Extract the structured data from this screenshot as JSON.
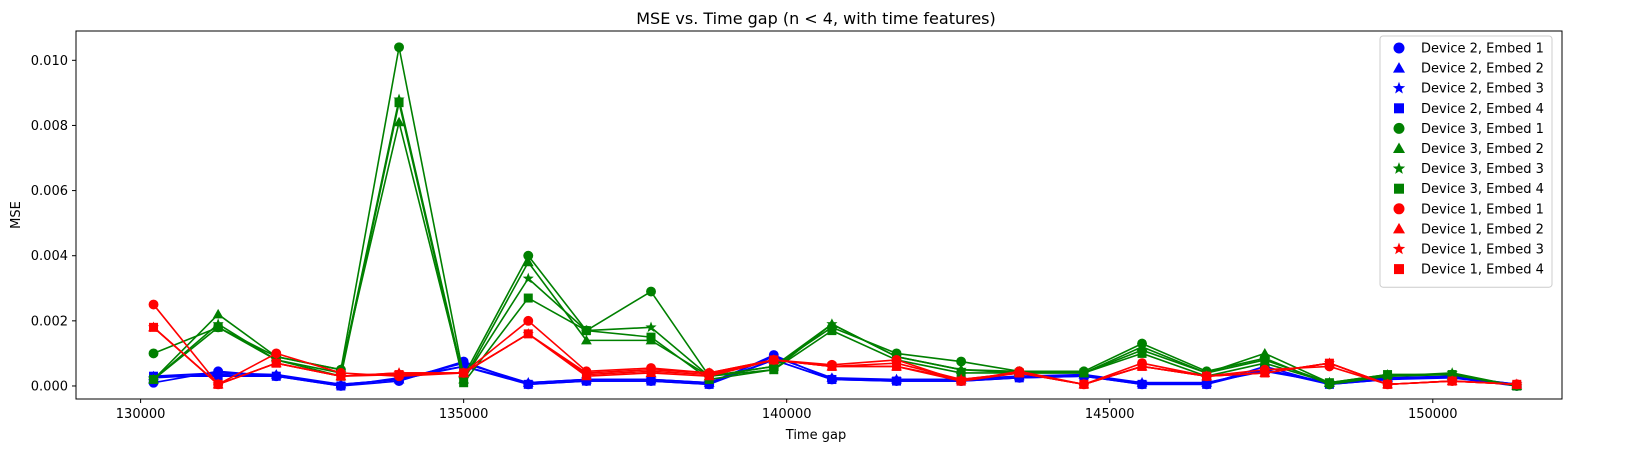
{
  "chart_data": {
    "type": "line",
    "title": "MSE vs. Time gap (n < 4, with time features)",
    "xlabel": "Time gap",
    "ylabel": "MSE",
    "xlim": [
      129000,
      152000
    ],
    "ylim": [
      -0.0004,
      0.0109
    ],
    "xticks": [
      130000,
      135000,
      140000,
      145000,
      150000
    ],
    "xtick_labels": [
      "130000",
      "135000",
      "140000",
      "145000",
      "150000"
    ],
    "yticks": [
      0.0,
      0.002,
      0.004,
      0.006,
      0.008,
      0.01
    ],
    "ytick_labels": [
      "0.000",
      "0.002",
      "0.004",
      "0.006",
      "0.008",
      "0.010"
    ],
    "grid": false,
    "legend_position": "top-right",
    "x": [
      130200,
      131200,
      132100,
      133100,
      134000,
      135000,
      136000,
      136900,
      137900,
      138800,
      139800,
      140700,
      141700,
      142700,
      143600,
      144600,
      145500,
      146500,
      147400,
      148400,
      149300,
      150300,
      151300
    ],
    "series": [
      {
        "name": "Device 2, Embed 1",
        "color": "#0000ff",
        "marker": "circle",
        "values": [
          0.0001,
          0.00045,
          0.0003,
          0.0,
          0.00015,
          0.00075,
          5e-05,
          0.00015,
          0.00015,
          5e-05,
          0.00095,
          0.0002,
          0.00015,
          0.00015,
          0.00025,
          0.0003,
          5e-05,
          5e-05,
          0.0006,
          5e-05,
          0.0002,
          0.0003,
          0.0
        ]
      },
      {
        "name": "Device 2, Embed 2",
        "color": "#0000ff",
        "marker": "triangle",
        "values": [
          0.0003,
          0.0004,
          0.00035,
          5e-05,
          0.0002,
          0.0007,
          0.0001,
          0.0002,
          0.0002,
          0.0001,
          0.0009,
          0.00025,
          0.0002,
          0.0002,
          0.0003,
          0.00035,
          0.0001,
          0.0001,
          0.0005,
          0.0001,
          0.00025,
          0.0003,
          5e-05
        ]
      },
      {
        "name": "Device 2, Embed 3",
        "color": "#0000ff",
        "marker": "star",
        "values": [
          0.00025,
          0.00035,
          0.0003,
          5e-05,
          0.0002,
          0.0006,
          0.0001,
          0.0002,
          0.0002,
          0.0001,
          0.0008,
          0.0002,
          0.0002,
          0.0002,
          0.0003,
          0.0003,
          0.0001,
          0.0001,
          0.00045,
          0.0001,
          0.0002,
          0.0003,
          5e-05
        ]
      },
      {
        "name": "Device 2, Embed 4",
        "color": "#0000ff",
        "marker": "square",
        "values": [
          0.0003,
          0.0003,
          0.0003,
          0.0,
          0.00025,
          0.0006,
          5e-05,
          0.00015,
          0.00015,
          5e-05,
          0.0008,
          0.0002,
          0.00015,
          0.00015,
          0.00025,
          0.0003,
          5e-05,
          5e-05,
          0.0005,
          5e-05,
          0.0002,
          0.00025,
          0.0
        ]
      },
      {
        "name": "Device 3, Embed 1",
        "color": "#008000",
        "marker": "circle",
        "values": [
          0.001,
          0.0018,
          0.0009,
          0.0005,
          0.0104,
          0.0003,
          0.004,
          0.0017,
          0.0029,
          0.0003,
          0.0006,
          0.0018,
          0.001,
          0.00075,
          0.00045,
          0.00045,
          0.0013,
          0.00045,
          0.00085,
          5e-05,
          0.0003,
          0.00035,
          0.0
        ]
      },
      {
        "name": "Device 3, Embed 2",
        "color": "#008000",
        "marker": "triangle",
        "values": [
          0.0002,
          0.0022,
          0.0009,
          0.0005,
          0.0081,
          0.0002,
          0.0038,
          0.0014,
          0.0014,
          0.0003,
          0.0006,
          0.0019,
          0.0009,
          0.0005,
          0.00045,
          0.0004,
          0.0012,
          0.0004,
          0.001,
          0.0001,
          0.00035,
          0.00035,
          0.0
        ]
      },
      {
        "name": "Device 3, Embed 3",
        "color": "#008000",
        "marker": "star",
        "values": [
          0.0002,
          0.0019,
          0.0008,
          0.0004,
          0.0088,
          0.0002,
          0.0033,
          0.0017,
          0.0018,
          0.0003,
          0.0005,
          0.0019,
          0.0009,
          0.0005,
          0.0004,
          0.0004,
          0.0011,
          0.0004,
          0.0008,
          0.0001,
          0.0003,
          0.0004,
          0.0
        ]
      },
      {
        "name": "Device 3, Embed 4",
        "color": "#008000",
        "marker": "square",
        "values": [
          0.0002,
          0.0018,
          0.0008,
          0.0003,
          0.0087,
          0.0001,
          0.0027,
          0.0017,
          0.0015,
          0.0002,
          0.0005,
          0.0017,
          0.0008,
          0.0004,
          0.0004,
          0.0004,
          0.001,
          0.0003,
          0.0007,
          0.0001,
          0.00035,
          0.00035,
          0.0
        ]
      },
      {
        "name": "Device 1, Embed 1",
        "color": "#ff0000",
        "marker": "circle",
        "values": [
          0.0025,
          5e-05,
          0.001,
          0.0004,
          0.0003,
          0.0004,
          0.002,
          0.00045,
          0.00055,
          0.0004,
          0.0008,
          0.00065,
          0.0008,
          0.00015,
          0.00045,
          5e-05,
          0.0007,
          0.0003,
          0.0005,
          0.0006,
          5e-05,
          0.00015,
          5e-05
        ]
      },
      {
        "name": "Device 1, Embed 2",
        "color": "#ff0000",
        "marker": "triangle",
        "values": [
          0.0018,
          5e-05,
          0.0007,
          0.0003,
          0.0004,
          0.0004,
          0.0016,
          0.0003,
          0.0004,
          0.0003,
          0.0008,
          0.0006,
          0.0006,
          0.0002,
          0.0004,
          5e-05,
          0.0006,
          0.0003,
          0.0004,
          0.0007,
          5e-05,
          0.00015,
          5e-05
        ]
      },
      {
        "name": "Device 1, Embed 3",
        "color": "#ff0000",
        "marker": "star",
        "values": [
          0.0018,
          5e-05,
          0.0007,
          0.0003,
          0.0004,
          0.0004,
          0.0016,
          0.0004,
          0.0005,
          0.0004,
          0.0008,
          0.0006,
          0.0007,
          0.0002,
          0.0004,
          5e-05,
          0.0006,
          0.0003,
          0.0004,
          0.0007,
          5e-05,
          0.00015,
          5e-05
        ]
      },
      {
        "name": "Device 1, Embed 4",
        "color": "#ff0000",
        "marker": "square",
        "values": [
          0.0018,
          5e-05,
          0.0007,
          0.0003,
          0.00035,
          0.0004,
          0.0016,
          0.00035,
          0.00045,
          0.00035,
          0.0008,
          0.0006,
          0.0006,
          0.00015,
          0.0004,
          5e-05,
          0.0006,
          0.0003,
          0.0004,
          0.0007,
          5e-05,
          0.00015,
          5e-05
        ]
      }
    ]
  }
}
